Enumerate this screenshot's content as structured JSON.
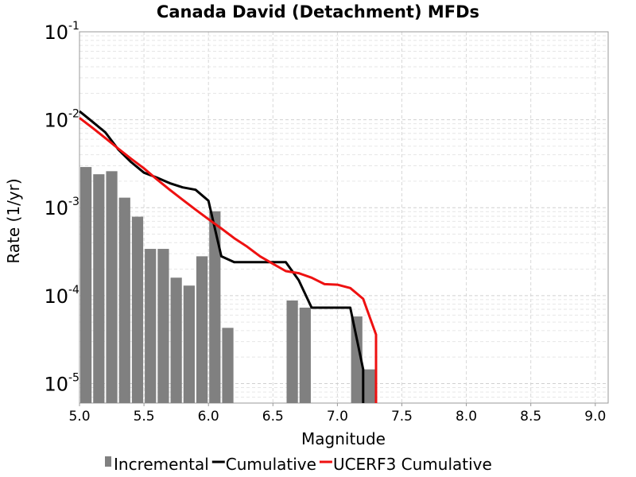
{
  "chart_data": {
    "type": "bar",
    "title": "Canada David (Detachment) MFDs",
    "xlabel": "Magnitude",
    "ylabel": "Rate (1/yr)",
    "xlim": [
      5.0,
      9.1
    ],
    "ylim": [
      6e-06,
      0.1
    ],
    "y_scale": "log",
    "grid": true,
    "legend_position": "bottom",
    "x_ticks": [
      "5.0",
      "5.5",
      "6.0",
      "6.5",
      "7.0",
      "7.5",
      "8.0",
      "8.5",
      "9.0"
    ],
    "y_ticks": [
      {
        "value": 1e-05,
        "base": "10",
        "exp": "-5"
      },
      {
        "value": 0.0001,
        "base": "10",
        "exp": "-4"
      },
      {
        "value": 0.001,
        "base": "10",
        "exp": "-3"
      },
      {
        "value": 0.01,
        "base": "10",
        "exp": "-2"
      },
      {
        "value": 0.1,
        "base": "10",
        "exp": "-1"
      }
    ],
    "series": [
      {
        "name": "Incremental",
        "kind": "bar",
        "color": "#808080",
        "x": [
          5.05,
          5.15,
          5.25,
          5.35,
          5.45,
          5.55,
          5.65,
          5.75,
          5.85,
          5.95,
          6.05,
          6.15,
          6.65,
          6.75,
          7.15,
          7.25
        ],
        "y": [
          0.0029,
          0.0024,
          0.0026,
          0.0013,
          0.00079,
          0.00034,
          0.00034,
          0.00016,
          0.00013,
          0.00028,
          0.00091,
          4.3e-05,
          8.8e-05,
          7.3e-05,
          5.8e-05,
          1.45e-05
        ]
      },
      {
        "name": "Cumulative",
        "kind": "line",
        "color": "#000000",
        "x": [
          5.0,
          5.1,
          5.2,
          5.3,
          5.4,
          5.5,
          5.6,
          5.7,
          5.8,
          5.9,
          6.0,
          6.1,
          6.2,
          6.3,
          6.4,
          6.5,
          6.6,
          6.7,
          6.8,
          6.9,
          7.0,
          7.1,
          7.2,
          7.2
        ],
        "y": [
          0.0125,
          0.0095,
          0.0072,
          0.0046,
          0.0033,
          0.0025,
          0.0022,
          0.0019,
          0.0017,
          0.0016,
          0.0012,
          0.00028,
          0.00024,
          0.00024,
          0.00024,
          0.00024,
          0.00024,
          0.00015,
          7.3e-05,
          7.3e-05,
          7.3e-05,
          7.3e-05,
          1.45e-05,
          6e-06
        ]
      },
      {
        "name": "UCERF3 Cumulative",
        "kind": "line",
        "color": "#ee1111",
        "x": [
          5.0,
          5.1,
          5.2,
          5.3,
          5.4,
          5.5,
          5.6,
          5.7,
          5.8,
          5.9,
          6.0,
          6.1,
          6.2,
          6.3,
          6.4,
          6.5,
          6.6,
          6.7,
          6.8,
          6.9,
          7.0,
          7.1,
          7.2,
          7.3,
          7.3
        ],
        "y": [
          0.0105,
          0.0081,
          0.0062,
          0.0047,
          0.0036,
          0.0028,
          0.0021,
          0.0016,
          0.00123,
          0.00095,
          0.00074,
          0.00058,
          0.00045,
          0.00036,
          0.00028,
          0.00023,
          0.00019,
          0.00018,
          0.00016,
          0.000135,
          0.000133,
          0.000122,
          9.2e-05,
          3.6e-05,
          6e-06
        ]
      }
    ]
  }
}
